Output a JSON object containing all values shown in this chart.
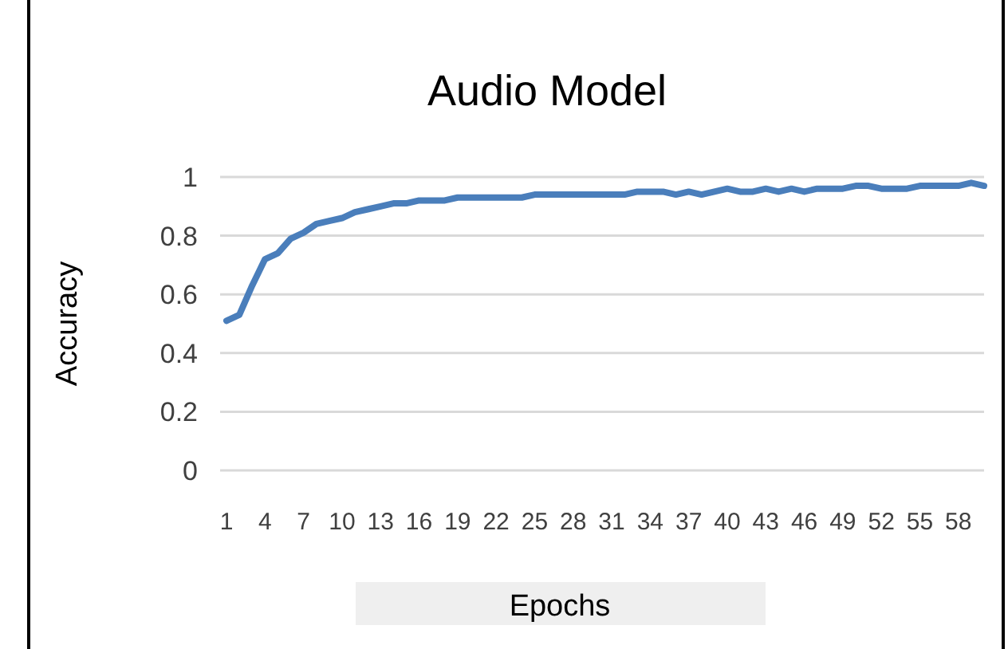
{
  "chart_data": {
    "type": "line",
    "title": "Audio Model",
    "xlabel": "Epochs",
    "ylabel": "Accuracy",
    "categories": [
      "1",
      null,
      null,
      "4",
      null,
      null,
      "7",
      null,
      null,
      "10",
      null,
      null,
      "13",
      null,
      null,
      "16",
      null,
      null,
      "19",
      null,
      null,
      "22",
      null,
      null,
      "25",
      null,
      null,
      "28",
      null,
      null,
      "31",
      null,
      null,
      "34",
      null,
      null,
      "37",
      null,
      null,
      "40",
      null,
      null,
      "43",
      null,
      null,
      "46",
      null,
      null,
      "49",
      null,
      null,
      "52",
      null,
      null,
      "55",
      null,
      null,
      "58",
      null,
      null
    ],
    "series": [
      {
        "color": "#4a7ebb",
        "values": [
          0.51,
          0.53,
          0.63,
          0.72,
          0.74,
          0.79,
          0.81,
          0.84,
          0.85,
          0.86,
          0.88,
          0.89,
          0.9,
          0.91,
          0.91,
          0.92,
          0.92,
          0.92,
          0.93,
          0.93,
          0.93,
          0.93,
          0.93,
          0.93,
          0.94,
          0.94,
          0.94,
          0.94,
          0.94,
          0.94,
          0.94,
          0.94,
          0.95,
          0.95,
          0.95,
          0.94,
          0.95,
          0.94,
          0.95,
          0.96,
          0.95,
          0.95,
          0.96,
          0.95,
          0.96,
          0.95,
          0.96,
          0.96,
          0.96,
          0.97,
          0.97,
          0.96,
          0.96,
          0.96,
          0.97,
          0.97,
          0.97,
          0.97,
          0.98,
          0.97
        ]
      }
    ],
    "ylim": [
      0,
      1
    ],
    "yticks": [
      0,
      0.2,
      0.4,
      0.6,
      0.8,
      1
    ],
    "grid": "y",
    "marker": "none",
    "line_style": "solid"
  }
}
